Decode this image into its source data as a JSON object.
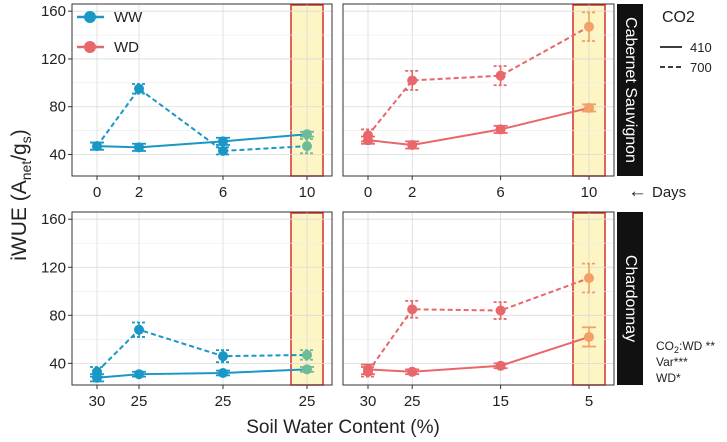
{
  "chart_data": {
    "type": "line",
    "ylabel": "iWUE (A",
    "ylabel_sub1": "net",
    "ylabel_mid": "/g",
    "ylabel_sub2": "s",
    "ylabel_end": ")",
    "xlabel": "Soil Water Content (%)",
    "ylim": [
      22,
      166
    ],
    "yticks": [
      "40",
      "80",
      "120",
      "160"
    ],
    "ytick_values": [
      40,
      80,
      120,
      160
    ],
    "days_label": "Days",
    "days_arrow": "←",
    "x_positions": [
      0,
      1,
      3,
      5
    ],
    "top_xticks": [
      "0",
      "2",
      "6",
      "10"
    ],
    "bottom_xticks_left": [
      "30",
      "25",
      "25",
      "25"
    ],
    "bottom_xticks_right": [
      "30",
      "25",
      "15",
      "5"
    ],
    "rows": [
      "Cabernet Sauvignon",
      "Chardonnay"
    ],
    "columns": [
      "WW",
      "WD"
    ],
    "colors": {
      "WW": "#1b97c6",
      "WD": "#e8676b",
      "WW_last": "#6dbb9b",
      "WD_last": "#f2a065",
      "highlight_fill": "#fdf6c4",
      "highlight_stroke": "#d9312b",
      "strip": "#111111"
    },
    "legend_treatment": [
      {
        "name": "WW",
        "color": "#1b97c6"
      },
      {
        "name": "WD",
        "color": "#e8676b"
      }
    ],
    "legend_co2_title": "CO2",
    "legend_co2": [
      {
        "name": "410",
        "style": "solid"
      },
      {
        "name": "700",
        "style": "dashed"
      }
    ],
    "stats": [
      {
        "base": "CO",
        "sub": "2",
        "rest": ":WD **"
      },
      {
        "base": "Var***"
      },
      {
        "base": "WD*"
      }
    ],
    "panels": [
      {
        "row": 0,
        "col": 0,
        "treatment": "WW",
        "series": [
          {
            "co2": "410",
            "values": [
              47,
              46,
              51,
              57
            ],
            "err": [
              3,
              3,
              3,
              2
            ]
          },
          {
            "co2": "700",
            "values": [
              47,
              95,
              43,
              47
            ],
            "err": [
              3,
              4,
              3,
              6
            ]
          }
        ]
      },
      {
        "row": 0,
        "col": 1,
        "treatment": "WD",
        "series": [
          {
            "co2": "410",
            "values": [
              52,
              48,
              61,
              79
            ],
            "err": [
              3,
              3,
              3,
              3
            ]
          },
          {
            "co2": "700",
            "values": [
              56,
              102,
              106,
              147
            ],
            "err": [
              5,
              8,
              8,
              12
            ]
          }
        ]
      },
      {
        "row": 1,
        "col": 0,
        "treatment": "WW",
        "series": [
          {
            "co2": "410",
            "values": [
              28,
              31,
              32,
              35
            ],
            "err": [
              3,
              2,
              2,
              2
            ]
          },
          {
            "co2": "700",
            "values": [
              33,
              68,
              46,
              47
            ],
            "err": [
              4,
              6,
              5,
              4
            ]
          }
        ]
      },
      {
        "row": 1,
        "col": 1,
        "treatment": "WD",
        "series": [
          {
            "co2": "410",
            "values": [
              35,
              33,
              38,
              62
            ],
            "err": [
              4,
              2,
              2,
              8
            ]
          },
          {
            "co2": "700",
            "values": [
              33,
              85,
              84,
              111
            ],
            "err": [
              4,
              7,
              7,
              12
            ]
          }
        ]
      }
    ]
  }
}
